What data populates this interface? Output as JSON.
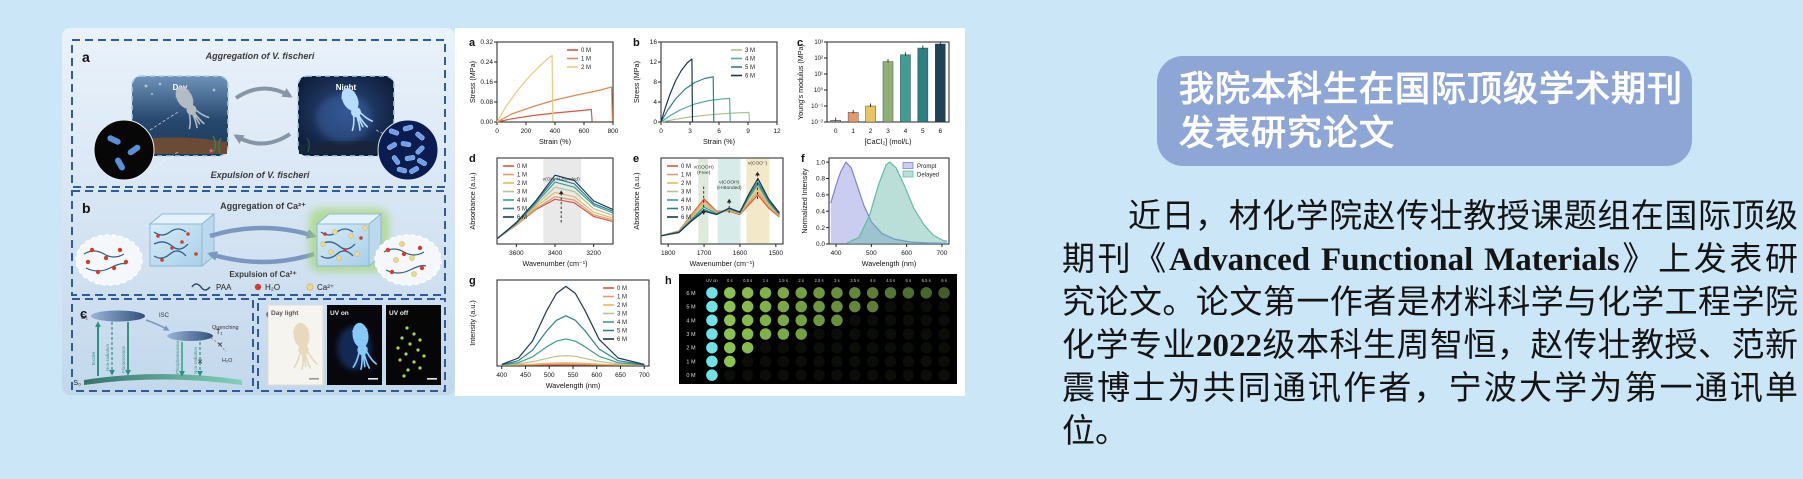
{
  "page_bg": "#cbe6f7",
  "left_figure": {
    "panel_a": {
      "label": "a",
      "top_arrow_label": "Aggregation of V. fischeri",
      "bottom_arrow_label": "Expulsion of V. fischeri",
      "day_label": "Day",
      "night_label": "Night"
    },
    "panel_b": {
      "label": "b",
      "top_arrow_label": "Aggregation of Ca²⁺",
      "bottom_arrow_label": "Expulsion of Ca²⁺",
      "legend": [
        {
          "name": "PAA",
          "color": "#2e4a6a"
        },
        {
          "name": "H₂O",
          "color": "#d43c2c"
        },
        {
          "name": "Ca²⁺",
          "color": "#ecd98e"
        }
      ]
    },
    "panel_c": {
      "label": "c",
      "s1": "S₁",
      "t1": "T₁",
      "s0": "S₀",
      "isc": "ISC",
      "excite": "Excite",
      "non_radiation_1": "Non-radiation",
      "fluorescence": "Fluorescence",
      "phosphorescence": "Phosphorescence",
      "non_radiation_2": "Non-radiation",
      "quenching": "Quenching",
      "h2o": "H₂O",
      "x_mark": "✕"
    },
    "panel_d": {
      "label": "d",
      "photo_labels": [
        "Day light",
        "UV on",
        "UV off"
      ]
    }
  },
  "chart_data": [
    {
      "panel": "a",
      "type": "line",
      "xlabel": "Strain (%)",
      "ylabel": "Stress (MPa)",
      "xlim": [
        0,
        800
      ],
      "ylim": [
        0,
        0.32
      ],
      "xticks": [
        0,
        200,
        400,
        600,
        800
      ],
      "yticks": [
        0,
        0.08,
        0.16,
        0.24,
        0.32
      ],
      "ytick_decimals": 2,
      "legend_pos": "tr",
      "series": [
        {
          "name": "0 M",
          "color": "#d85740",
          "points": [
            [
              0,
              0
            ],
            [
              100,
              0.013
            ],
            [
              250,
              0.026
            ],
            [
              400,
              0.036
            ],
            [
              550,
              0.044
            ],
            [
              650,
              0.05
            ],
            [
              656,
              0.003
            ]
          ]
        },
        {
          "name": "1 M",
          "color": "#df8a55",
          "points": [
            [
              0,
              0
            ],
            [
              100,
              0.032
            ],
            [
              250,
              0.062
            ],
            [
              400,
              0.088
            ],
            [
              550,
              0.108
            ],
            [
              700,
              0.126
            ],
            [
              790,
              0.14
            ],
            [
              796,
              0.003
            ]
          ]
        },
        {
          "name": "2 M",
          "color": "#e9c97e",
          "points": [
            [
              0,
              0
            ],
            [
              60,
              0.06
            ],
            [
              140,
              0.125
            ],
            [
              220,
              0.18
            ],
            [
              300,
              0.227
            ],
            [
              360,
              0.258
            ],
            [
              380,
              0.266
            ],
            [
              385,
              0.003
            ]
          ]
        }
      ]
    },
    {
      "panel": "b",
      "type": "line",
      "xlabel": "Strain (%)",
      "ylabel": "Stress (MPa)",
      "xlim": [
        0,
        12
      ],
      "ylim": [
        0,
        16
      ],
      "xticks": [
        0,
        3,
        6,
        9,
        12
      ],
      "yticks": [
        0,
        4,
        8,
        12,
        16
      ],
      "legend_pos": "tr",
      "series": [
        {
          "name": "3 M",
          "color": "#a9c38f",
          "points": [
            [
              0,
              0
            ],
            [
              1.5,
              0.55
            ],
            [
              3,
              1.0
            ],
            [
              5,
              1.45
            ],
            [
              7,
              1.75
            ],
            [
              8.5,
              1.88
            ],
            [
              9.1,
              1.9
            ],
            [
              9.16,
              0.05
            ]
          ]
        },
        {
          "name": "4 M",
          "color": "#54aaa6",
          "points": [
            [
              0,
              0
            ],
            [
              1,
              1.35
            ],
            [
              2,
              2.45
            ],
            [
              3.5,
              3.6
            ],
            [
              5,
              4.3
            ],
            [
              6.5,
              4.65
            ],
            [
              7.1,
              4.72
            ],
            [
              7.16,
              0.05
            ]
          ]
        },
        {
          "name": "5 M",
          "color": "#2b7f94",
          "points": [
            [
              0,
              0
            ],
            [
              0.7,
              2.4
            ],
            [
              1.5,
              4.6
            ],
            [
              2.5,
              6.6
            ],
            [
              3.5,
              7.9
            ],
            [
              4.5,
              8.7
            ],
            [
              5.4,
              9.05
            ],
            [
              5.46,
              0.05
            ]
          ]
        },
        {
          "name": "6 M",
          "color": "#1c3850",
          "points": [
            [
              0,
              0
            ],
            [
              0.4,
              2.6
            ],
            [
              0.9,
              5.4
            ],
            [
              1.5,
              8.2
            ],
            [
              2.1,
              10.3
            ],
            [
              2.7,
              11.8
            ],
            [
              3.2,
              12.6
            ],
            [
              3.26,
              0.05
            ]
          ]
        }
      ]
    },
    {
      "panel": "c",
      "type": "bar",
      "log": true,
      "xlabel": "[CaCl₂] (mol/L)",
      "ylabel": "Young's modulus (MPa)",
      "categories": [
        "0",
        "1",
        "2",
        "3",
        "4",
        "5",
        "6"
      ],
      "values": [
        0.013,
        0.04,
        0.1,
        60,
        160,
        420,
        750
      ],
      "colors": [
        "#9a9a9a",
        "#e8996a",
        "#e7c561",
        "#8fae77",
        "#3f9d93",
        "#2e7f83",
        "#1f4257"
      ],
      "ylim": [
        0.01,
        1000
      ],
      "yticks": [
        0.01,
        0.1,
        1,
        10,
        100,
        1000
      ],
      "ytick_labels": [
        "10⁻²",
        "10⁻¹",
        "10⁰",
        "10¹",
        "10²",
        "10³"
      ]
    },
    {
      "panel": "d",
      "type": "line",
      "xlabel": "Wavenumber (cm⁻¹)",
      "ylabel": "Absorbance (a.u.)",
      "xlim": [
        3700,
        3100
      ],
      "ylim": [
        0,
        1.0
      ],
      "xticks": [
        3600,
        3400,
        3200
      ],
      "yticks": [],
      "legend_pos": "tl",
      "bands": [
        {
          "x0": 3460,
          "x1": 3265,
          "color": "#e9e9e9"
        }
      ],
      "annotations": [
        {
          "x": 3368,
          "y0": 0.25,
          "y1": 0.62,
          "dir": "up",
          "text": "ν(OH, H-Bonded)",
          "ty": 0.74
        }
      ],
      "x": [
        3700,
        3600,
        3500,
        3400,
        3300,
        3200,
        3100
      ],
      "series": [
        {
          "name": "0 M",
          "color": "#d85740",
          "values": [
            0.06,
            0.22,
            0.4,
            0.52,
            0.48,
            0.32,
            0.26
          ]
        },
        {
          "name": "1 M",
          "color": "#e09a72",
          "values": [
            0.06,
            0.22,
            0.41,
            0.55,
            0.51,
            0.34,
            0.28
          ]
        },
        {
          "name": "2 M",
          "color": "#e6b95c",
          "values": [
            0.06,
            0.23,
            0.43,
            0.6,
            0.55,
            0.37,
            0.3
          ]
        },
        {
          "name": "3 M",
          "color": "#b5c48e",
          "values": [
            0.06,
            0.23,
            0.45,
            0.66,
            0.61,
            0.41,
            0.33
          ]
        },
        {
          "name": "4 M",
          "color": "#3f9d8e",
          "values": [
            0.06,
            0.24,
            0.47,
            0.72,
            0.66,
            0.45,
            0.36
          ]
        },
        {
          "name": "5 M",
          "color": "#2e7f94",
          "values": [
            0.06,
            0.24,
            0.49,
            0.76,
            0.7,
            0.47,
            0.38
          ]
        },
        {
          "name": "6 M",
          "color": "#1c3850",
          "values": [
            0.06,
            0.25,
            0.5,
            0.8,
            0.74,
            0.5,
            0.4
          ]
        }
      ]
    },
    {
      "panel": "e",
      "type": "line",
      "xlabel": "Wavenumber (cm⁻¹)",
      "ylabel": "Absorbance (a.u.)",
      "xlim": [
        1820,
        1480
      ],
      "ylim": [
        0,
        1.05
      ],
      "xticks": [
        1800,
        1700,
        1600,
        1500
      ],
      "yticks": [],
      "legend_pos": "tl",
      "bands": [
        {
          "x0": 1716,
          "x1": 1688,
          "color": "#dfe9d9"
        },
        {
          "x0": 1662,
          "x1": 1598,
          "color": "#d7ebe8"
        },
        {
          "x0": 1582,
          "x1": 1518,
          "color": "#f3e9c9"
        }
      ],
      "annotations": [
        {
          "x": 1701,
          "y0": 0.7,
          "y1": 0.36,
          "dir": "down",
          "text": "ν(COOH)|(Free)",
          "ty": 0.92
        },
        {
          "x": 1630,
          "y0": 0.38,
          "y1": 0.55,
          "dir": "up",
          "text": "ν(COOH)|(H-Bonded)",
          "ty": 0.74
        },
        {
          "x": 1551,
          "y0": 0.55,
          "y1": 0.88,
          "dir": "up",
          "text": "ν(COO⁻)",
          "ty": 0.97
        }
      ],
      "x": [
        1820,
        1770,
        1735,
        1700,
        1665,
        1630,
        1600,
        1575,
        1550,
        1520,
        1490
      ],
      "series": [
        {
          "name": "0 M",
          "color": "#d85740",
          "values": [
            0.1,
            0.16,
            0.36,
            0.55,
            0.4,
            0.4,
            0.36,
            0.48,
            0.6,
            0.44,
            0.33
          ]
        },
        {
          "name": "1 M",
          "color": "#e09a72",
          "values": [
            0.1,
            0.16,
            0.35,
            0.53,
            0.39,
            0.41,
            0.37,
            0.5,
            0.63,
            0.46,
            0.34
          ]
        },
        {
          "name": "2 M",
          "color": "#e6b95c",
          "values": [
            0.1,
            0.15,
            0.33,
            0.51,
            0.38,
            0.41,
            0.37,
            0.52,
            0.66,
            0.47,
            0.35
          ]
        },
        {
          "name": "3 M",
          "color": "#b5c48e",
          "values": [
            0.1,
            0.15,
            0.31,
            0.48,
            0.38,
            0.42,
            0.38,
            0.55,
            0.7,
            0.49,
            0.36
          ]
        },
        {
          "name": "4 M",
          "color": "#3f9d8e",
          "values": [
            0.1,
            0.15,
            0.3,
            0.45,
            0.37,
            0.43,
            0.38,
            0.57,
            0.73,
            0.51,
            0.36
          ]
        },
        {
          "name": "5 M",
          "color": "#2e7f94",
          "values": [
            0.1,
            0.14,
            0.29,
            0.42,
            0.36,
            0.43,
            0.39,
            0.59,
            0.76,
            0.53,
            0.37
          ]
        },
        {
          "name": "6 M",
          "color": "#1c3850",
          "values": [
            0.1,
            0.14,
            0.28,
            0.4,
            0.36,
            0.44,
            0.39,
            0.61,
            0.8,
            0.55,
            0.38
          ]
        }
      ]
    },
    {
      "panel": "f",
      "type": "area",
      "xlabel": "Wavelength (nm)",
      "ylabel": "Normalized Intensity",
      "xlim": [
        380,
        720
      ],
      "ylim": [
        0,
        1.05
      ],
      "xticks": [
        400,
        500,
        600,
        700
      ],
      "yticks": [
        0,
        0.2,
        0.4,
        0.6,
        0.8,
        1.0
      ],
      "ytick_decimals": 1,
      "legend_pos": "tr",
      "series": [
        {
          "name": "Prompt",
          "color": "#7b82d8",
          "fill": "rgba(123,130,216,0.40)",
          "points": [
            [
              385,
              0.5
            ],
            [
              400,
              0.72
            ],
            [
              413,
              0.88
            ],
            [
              428,
              1.0
            ],
            [
              443,
              0.93
            ],
            [
              458,
              0.74
            ],
            [
              478,
              0.48
            ],
            [
              500,
              0.27
            ],
            [
              530,
              0.13
            ],
            [
              565,
              0.06
            ],
            [
              610,
              0.025
            ],
            [
              660,
              0.012
            ],
            [
              712,
              0.008
            ]
          ]
        },
        {
          "name": "Delayed",
          "color": "#66b9a8",
          "fill": "rgba(102,185,168,0.45)",
          "points": [
            [
              430,
              0.01
            ],
            [
              465,
              0.08
            ],
            [
              495,
              0.35
            ],
            [
              520,
              0.72
            ],
            [
              542,
              0.97
            ],
            [
              552,
              1.0
            ],
            [
              570,
              0.93
            ],
            [
              595,
              0.7
            ],
            [
              620,
              0.44
            ],
            [
              648,
              0.24
            ],
            [
              675,
              0.11
            ],
            [
              700,
              0.05
            ],
            [
              715,
              0.03
            ]
          ]
        }
      ]
    },
    {
      "panel": "g",
      "type": "line",
      "xlabel": "Wavelength (nm)",
      "ylabel": "Intensity (a.u.)",
      "xlim": [
        390,
        710
      ],
      "ylim": [
        0,
        1.08
      ],
      "xticks": [
        400,
        450,
        500,
        550,
        600,
        650,
        700
      ],
      "yticks": [],
      "legend_pos": "tr",
      "x": [
        400,
        435,
        465,
        495,
        515,
        535,
        555,
        575,
        605,
        645,
        700
      ],
      "series": [
        {
          "name": "0 M",
          "color": "#d85740",
          "values": [
            0.01,
            0.01,
            0.012,
            0.013,
            0.014,
            0.015,
            0.014,
            0.013,
            0.012,
            0.01,
            0.01
          ]
        },
        {
          "name": "1 M",
          "color": "#e09a72",
          "values": [
            0.012,
            0.014,
            0.018,
            0.022,
            0.024,
            0.025,
            0.024,
            0.022,
            0.018,
            0.014,
            0.012
          ]
        },
        {
          "name": "2 M",
          "color": "#e6b95c",
          "values": [
            0.012,
            0.016,
            0.024,
            0.033,
            0.038,
            0.04,
            0.038,
            0.033,
            0.024,
            0.016,
            0.012
          ]
        },
        {
          "name": "3 M",
          "color": "#b5c48e",
          "values": [
            0.015,
            0.026,
            0.054,
            0.096,
            0.122,
            0.13,
            0.122,
            0.096,
            0.057,
            0.027,
            0.013
          ]
        },
        {
          "name": "4 M",
          "color": "#3f9d8e",
          "values": [
            0.015,
            0.041,
            0.115,
            0.243,
            0.312,
            0.34,
            0.312,
            0.243,
            0.122,
            0.041,
            0.013
          ]
        },
        {
          "name": "5 M",
          "color": "#2e7f94",
          "values": [
            0.016,
            0.067,
            0.2,
            0.444,
            0.574,
            0.63,
            0.574,
            0.444,
            0.214,
            0.067,
            0.016
          ]
        },
        {
          "name": "6 M",
          "color": "#1c3850",
          "values": [
            0.02,
            0.1,
            0.315,
            0.7,
            0.91,
            1.0,
            0.91,
            0.7,
            0.335,
            0.1,
            0.02
          ]
        }
      ]
    },
    {
      "panel": "h",
      "type": "dotgrid",
      "col_headers": [
        "UV on",
        "0 s",
        "0.5 s",
        "1 s",
        "1.5 s",
        "2 s",
        "2.5 s",
        "3 s",
        "3.5 s",
        "4 s",
        "4.5 s",
        "5 s",
        "5.5 s",
        "6 s"
      ],
      "row_labels": [
        "6 M",
        "5 M",
        "4 M",
        "3 M",
        "2 M",
        "1 M",
        "0 M"
      ],
      "glow_counts": [
        13,
        9,
        7,
        5,
        2,
        1,
        0
      ],
      "uv_dot_color": "#70e2e6",
      "glow_dot_color": "#8cc24f",
      "bg": "#000000"
    }
  ],
  "article": {
    "title_line1": "我院本科生在国际顶级学术期刊",
    "title_line2": "发表研究论文",
    "body_part1": "近日，材化学院赵传壮教授课题组在国际顶级期刊《",
    "journal": "Advanced Functional Materials",
    "body_part2": "》上发表研究论文。论文第一作者是材料科学与化学工程学院化学专业",
    "class_year": "2022",
    "body_part3": "级本科生周智恒，赵传壮教授、范新震博士为共同通讯作者，宁波大学为第一通讯单位。"
  }
}
